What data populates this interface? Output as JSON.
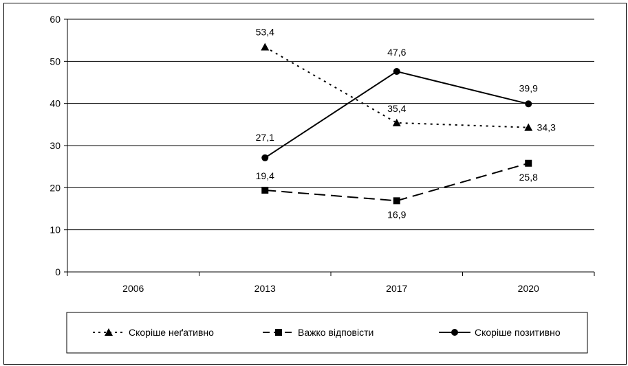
{
  "chart_data": {
    "type": "line",
    "categories": [
      "2006",
      "2013",
      "2017",
      "2020"
    ],
    "ylim": [
      0,
      60
    ],
    "yticks": [
      "0",
      "10",
      "20",
      "30",
      "40",
      "50",
      "60"
    ],
    "grid": true,
    "legend_position": "bottom",
    "series": [
      {
        "name": "Скоріше неґативно",
        "values": [
          null,
          53.4,
          35.4,
          34.3
        ],
        "labels": [
          "",
          "53,4",
          "35,4",
          "34,3"
        ],
        "marker": "triangle",
        "dash": "dotted",
        "color": "#000000"
      },
      {
        "name": "Важко відповісти",
        "values": [
          null,
          19.4,
          16.9,
          25.8
        ],
        "labels": [
          "",
          "19,4",
          "16,9",
          "25,8"
        ],
        "marker": "square",
        "dash": "dashed",
        "color": "#000000"
      },
      {
        "name": "Скоріше позитивно",
        "values": [
          null,
          27.1,
          47.6,
          39.9
        ],
        "labels": [
          "",
          "27,1",
          "47,6",
          "39,9"
        ],
        "marker": "circle",
        "dash": "solid",
        "color": "#000000"
      }
    ]
  }
}
